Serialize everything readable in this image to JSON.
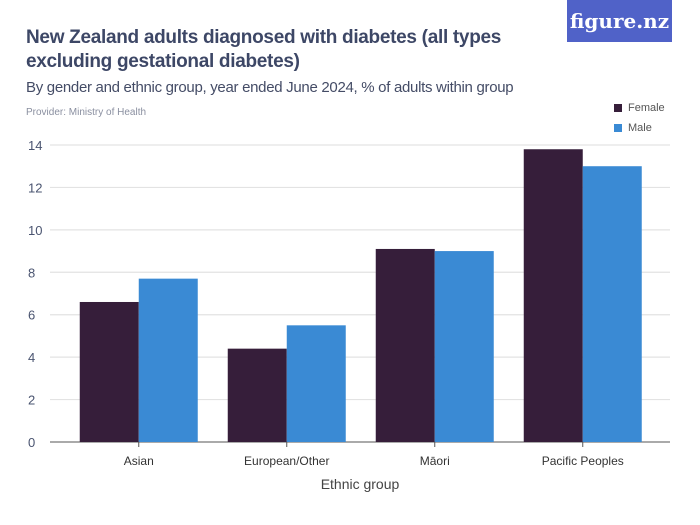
{
  "title": "New Zealand adults diagnosed with diabetes (all types excluding gestational diabetes)",
  "subtitle": "By gender and ethnic group, year ended June 2024, % of adults within group",
  "provider": "Provider: Ministry of Health",
  "logo": "figure.nz",
  "chart_data": {
    "type": "bar",
    "title": "New Zealand adults diagnosed with diabetes (all types excluding gestational diabetes)",
    "xlabel": "Ethnic group",
    "ylabel": "",
    "categories": [
      "Asian",
      "European/Other",
      "Māori",
      "Pacific Peoples"
    ],
    "series": [
      {
        "name": "Female",
        "color": "#361e3a",
        "values": [
          6.6,
          4.4,
          9.1,
          13.8
        ]
      },
      {
        "name": "Male",
        "color": "#3a8ad4",
        "values": [
          7.7,
          5.5,
          9.0,
          13.0
        ]
      }
    ],
    "ylim": [
      0,
      14
    ],
    "yticks": [
      0,
      2,
      4,
      6,
      8,
      10,
      12,
      14
    ],
    "grid": true,
    "legend": "top-right"
  }
}
